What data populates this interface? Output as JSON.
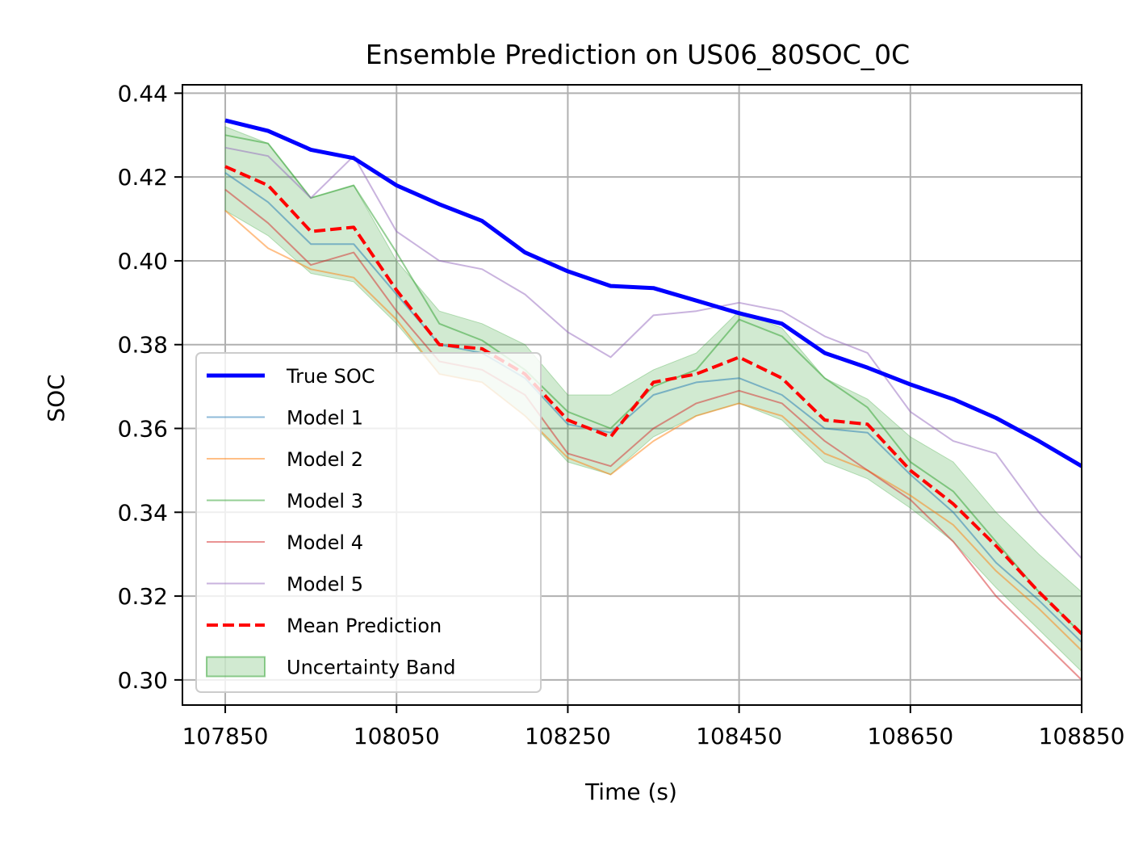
{
  "chart_data": {
    "type": "line",
    "title": "Ensemble Prediction on US06_80SOC_0C",
    "xlabel": "Time (s)",
    "ylabel": "SOC",
    "xlim": [
      107800,
      108850
    ],
    "ylim": [
      0.294,
      0.442
    ],
    "xticks": [
      107850,
      108050,
      108250,
      108450,
      108650,
      108850
    ],
    "xtick_labels": [
      "107850",
      "108050",
      "108250",
      "108450",
      "108650",
      "108850"
    ],
    "yticks": [
      0.3,
      0.32,
      0.34,
      0.36,
      0.38,
      0.4,
      0.42,
      0.44
    ],
    "ytick_labels": [
      "0.30",
      "0.32",
      "0.34",
      "0.36",
      "0.38",
      "0.40",
      "0.42",
      "0.44"
    ],
    "grid": true,
    "legend_position": "lower-left",
    "colors": {
      "true_soc": "#0000ff",
      "model_1": "#1f77b4",
      "model_2": "#ff7f0e",
      "model_3": "#2ca02c",
      "model_4": "#d62728",
      "model_5": "#9467bd",
      "mean": "#ff0000",
      "band": "#2ca02c"
    },
    "legend": [
      "True SOC",
      "Model 1",
      "Model 2",
      "Model 3",
      "Model 4",
      "Model 5",
      "Mean Prediction",
      "Uncertainty Band"
    ],
    "x": [
      107850,
      107900,
      107950,
      108000,
      108050,
      108100,
      108150,
      108200,
      108250,
      108300,
      108350,
      108400,
      108450,
      108500,
      108550,
      108600,
      108650,
      108700,
      108750,
      108800,
      108850
    ],
    "series": [
      {
        "name": "True SOC",
        "values": [
          0.4335,
          0.431,
          0.4265,
          0.4245,
          0.418,
          0.4135,
          0.4095,
          0.402,
          0.3975,
          0.394,
          0.3935,
          0.3905,
          0.3875,
          0.385,
          0.378,
          0.3745,
          0.3705,
          0.367,
          0.3625,
          0.357,
          0.351
        ]
      },
      {
        "name": "Model 1",
        "values": [
          0.421,
          0.414,
          0.404,
          0.404,
          0.392,
          0.38,
          0.378,
          0.372,
          0.361,
          0.359,
          0.368,
          0.371,
          0.372,
          0.368,
          0.36,
          0.359,
          0.349,
          0.34,
          0.328,
          0.319,
          0.309
        ]
      },
      {
        "name": "Model 2",
        "values": [
          0.412,
          0.403,
          0.398,
          0.396,
          0.386,
          0.373,
          0.371,
          0.363,
          0.353,
          0.349,
          0.357,
          0.363,
          0.366,
          0.363,
          0.354,
          0.35,
          0.344,
          0.337,
          0.326,
          0.317,
          0.307
        ]
      },
      {
        "name": "Model 3",
        "values": [
          0.43,
          0.428,
          0.415,
          0.418,
          0.402,
          0.385,
          0.381,
          0.374,
          0.364,
          0.36,
          0.37,
          0.374,
          0.386,
          0.382,
          0.372,
          0.365,
          0.352,
          0.345,
          0.333,
          0.321,
          0.311
        ]
      },
      {
        "name": "Model 4",
        "values": [
          0.417,
          0.409,
          0.399,
          0.402,
          0.388,
          0.376,
          0.374,
          0.368,
          0.354,
          0.351,
          0.36,
          0.366,
          0.369,
          0.366,
          0.357,
          0.35,
          0.343,
          0.333,
          0.32,
          0.31,
          0.3
        ]
      },
      {
        "name": "Model 5",
        "values": [
          0.427,
          0.425,
          0.415,
          0.425,
          0.407,
          0.4,
          0.398,
          0.392,
          0.383,
          0.377,
          0.387,
          0.388,
          0.39,
          0.388,
          0.382,
          0.378,
          0.364,
          0.357,
          0.354,
          0.34,
          0.329
        ]
      },
      {
        "name": "Mean Prediction",
        "values": [
          0.4225,
          0.418,
          0.407,
          0.408,
          0.393,
          0.38,
          0.379,
          0.373,
          0.362,
          0.358,
          0.371,
          0.373,
          0.377,
          0.372,
          0.362,
          0.361,
          0.35,
          0.342,
          0.332,
          0.321,
          0.311
        ]
      },
      {
        "name": "Uncertainty Band",
        "upper": [
          0.432,
          0.428,
          0.415,
          0.418,
          0.4,
          0.388,
          0.385,
          0.38,
          0.368,
          0.368,
          0.374,
          0.378,
          0.388,
          0.384,
          0.372,
          0.367,
          0.358,
          0.352,
          0.34,
          0.33,
          0.321
        ],
        "lower": [
          0.412,
          0.406,
          0.397,
          0.395,
          0.385,
          0.373,
          0.371,
          0.363,
          0.352,
          0.349,
          0.358,
          0.363,
          0.366,
          0.362,
          0.352,
          0.348,
          0.341,
          0.333,
          0.322,
          0.312,
          0.302
        ]
      }
    ]
  }
}
